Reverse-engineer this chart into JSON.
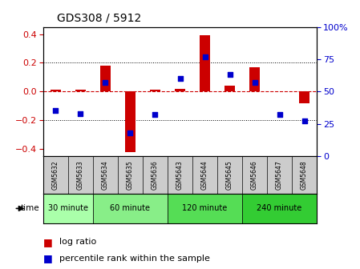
{
  "title": "GDS308 / 5912",
  "samples": [
    "GSM5632",
    "GSM5633",
    "GSM5634",
    "GSM5635",
    "GSM5636",
    "GSM5643",
    "GSM5644",
    "GSM5645",
    "GSM5646",
    "GSM5647",
    "GSM5648"
  ],
  "log_ratio": [
    0.01,
    0.01,
    0.18,
    -0.42,
    0.01,
    0.02,
    0.39,
    0.04,
    0.17,
    0.0,
    -0.08
  ],
  "percentile": [
    35,
    33,
    57,
    18,
    32,
    60,
    77,
    63,
    57,
    32,
    27
  ],
  "group_spans": [
    {
      "start": 0,
      "end": 1,
      "label": "30 minute",
      "color": "#aaffaa"
    },
    {
      "start": 2,
      "end": 4,
      "label": "60 minute",
      "color": "#88ee88"
    },
    {
      "start": 5,
      "end": 7,
      "label": "120 minute",
      "color": "#55dd55"
    },
    {
      "start": 8,
      "end": 10,
      "label": "240 minute",
      "color": "#33cc33"
    }
  ],
  "bar_color": "#cc0000",
  "dot_color": "#0000cc",
  "ylim_left": [
    -0.45,
    0.45
  ],
  "ylim_right": [
    0,
    100
  ],
  "yticks_left": [
    -0.4,
    -0.2,
    0.0,
    0.2,
    0.4
  ],
  "yticks_right": [
    0,
    25,
    50,
    75,
    100
  ],
  "hline_dotted": [
    -0.2,
    0.2
  ],
  "hline_dashed_red": 0.0,
  "background_color": "#ffffff",
  "label_bg": "#cccccc",
  "bar_width": 0.4
}
